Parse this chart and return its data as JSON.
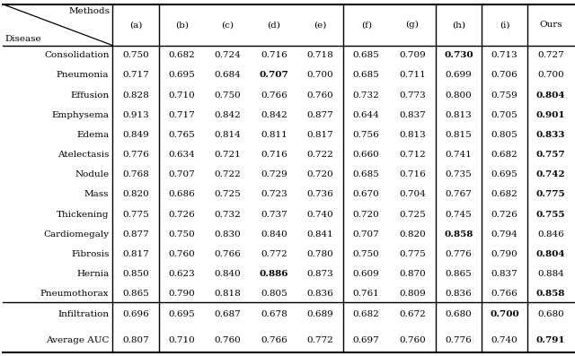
{
  "col_headers": [
    "(a)",
    "(b)",
    "(c)",
    "(d)",
    "(e)",
    "(f)",
    "(g)",
    "(h)",
    "(i)",
    "Ours"
  ],
  "row_headers": [
    "Consolidation",
    "Pneumonia",
    "Effusion",
    "Emphysema",
    "Edema",
    "Atelectasis",
    "Nodule",
    "Mass",
    "Thickening",
    "Cardiomegaly",
    "Fibrosis",
    "Hernia",
    "Pneumothorax",
    "Infiltration"
  ],
  "avg_row_label": "Average AUC",
  "data": [
    [
      "0.750",
      "0.682",
      "0.724",
      "0.716",
      "0.718",
      "0.685",
      "0.709",
      "0.730",
      "0.713",
      "0.727"
    ],
    [
      "0.717",
      "0.695",
      "0.684",
      "0.707",
      "0.700",
      "0.685",
      "0.711",
      "0.699",
      "0.706",
      "0.700"
    ],
    [
      "0.828",
      "0.710",
      "0.750",
      "0.766",
      "0.760",
      "0.732",
      "0.773",
      "0.800",
      "0.759",
      "0.804"
    ],
    [
      "0.913",
      "0.717",
      "0.842",
      "0.842",
      "0.877",
      "0.644",
      "0.837",
      "0.813",
      "0.705",
      "0.901"
    ],
    [
      "0.849",
      "0.765",
      "0.814",
      "0.811",
      "0.817",
      "0.756",
      "0.813",
      "0.815",
      "0.805",
      "0.833"
    ],
    [
      "0.776",
      "0.634",
      "0.721",
      "0.716",
      "0.722",
      "0.660",
      "0.712",
      "0.741",
      "0.682",
      "0.757"
    ],
    [
      "0.768",
      "0.707",
      "0.722",
      "0.729",
      "0.720",
      "0.685",
      "0.716",
      "0.735",
      "0.695",
      "0.742"
    ],
    [
      "0.820",
      "0.686",
      "0.725",
      "0.723",
      "0.736",
      "0.670",
      "0.704",
      "0.767",
      "0.682",
      "0.775"
    ],
    [
      "0.775",
      "0.726",
      "0.732",
      "0.737",
      "0.740",
      "0.720",
      "0.725",
      "0.745",
      "0.726",
      "0.755"
    ],
    [
      "0.877",
      "0.750",
      "0.830",
      "0.840",
      "0.841",
      "0.707",
      "0.820",
      "0.858",
      "0.794",
      "0.846"
    ],
    [
      "0.817",
      "0.760",
      "0.766",
      "0.772",
      "0.780",
      "0.750",
      "0.775",
      "0.776",
      "0.790",
      "0.804"
    ],
    [
      "0.850",
      "0.623",
      "0.840",
      "0.886",
      "0.873",
      "0.609",
      "0.870",
      "0.865",
      "0.837",
      "0.884"
    ],
    [
      "0.865",
      "0.790",
      "0.818",
      "0.805",
      "0.836",
      "0.761",
      "0.809",
      "0.836",
      "0.766",
      "0.858"
    ],
    [
      "0.696",
      "0.695",
      "0.687",
      "0.678",
      "0.689",
      "0.682",
      "0.672",
      "0.680",
      "0.700",
      "0.680"
    ]
  ],
  "avg_data": [
    "0.807",
    "0.710",
    "0.760",
    "0.766",
    "0.772",
    "0.697",
    "0.760",
    "0.776",
    "0.740",
    "0.791"
  ],
  "bold": [
    [
      7
    ],
    [
      3
    ],
    [
      9
    ],
    [
      9
    ],
    [
      9
    ],
    [
      9
    ],
    [
      9
    ],
    [
      9
    ],
    [
      9
    ],
    [
      7
    ],
    [
      9
    ],
    [
      3
    ],
    [
      9
    ],
    [
      8
    ]
  ],
  "avg_bold": [
    9
  ],
  "bg_color": "#ffffff",
  "fontsize": 7.5,
  "fig_width": 6.4,
  "fig_height": 3.97
}
